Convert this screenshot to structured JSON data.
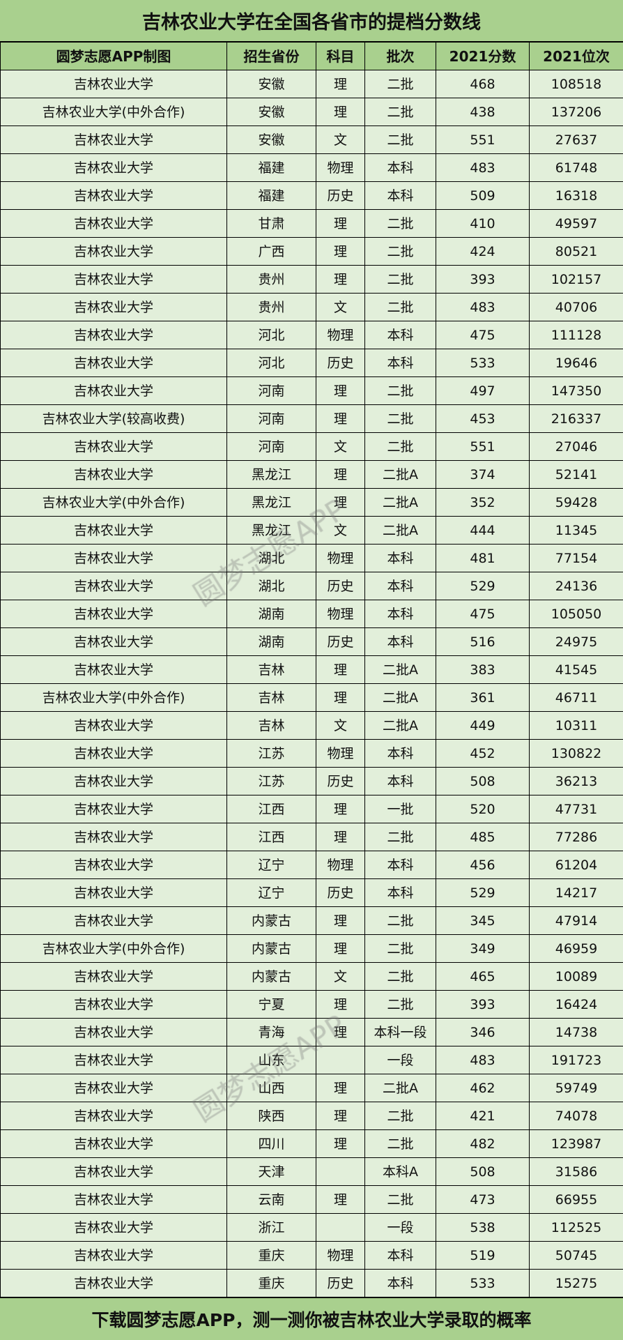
{
  "title": "吉林农业大学在全国各省市的提档分数线",
  "headers": [
    "圆梦志愿APP制图",
    "招生省份",
    "科目",
    "批次",
    "2021分数",
    "2021位次"
  ],
  "rows": [
    [
      "吉林农业大学",
      "安徽",
      "理",
      "二批",
      "468",
      "108518"
    ],
    [
      "吉林农业大学(中外合作)",
      "安徽",
      "理",
      "二批",
      "438",
      "137206"
    ],
    [
      "吉林农业大学",
      "安徽",
      "文",
      "二批",
      "551",
      "27637"
    ],
    [
      "吉林农业大学",
      "福建",
      "物理",
      "本科",
      "483",
      "61748"
    ],
    [
      "吉林农业大学",
      "福建",
      "历史",
      "本科",
      "509",
      "16318"
    ],
    [
      "吉林农业大学",
      "甘肃",
      "理",
      "二批",
      "410",
      "49597"
    ],
    [
      "吉林农业大学",
      "广西",
      "理",
      "二批",
      "424",
      "80521"
    ],
    [
      "吉林农业大学",
      "贵州",
      "理",
      "二批",
      "393",
      "102157"
    ],
    [
      "吉林农业大学",
      "贵州",
      "文",
      "二批",
      "483",
      "40706"
    ],
    [
      "吉林农业大学",
      "河北",
      "物理",
      "本科",
      "475",
      "111128"
    ],
    [
      "吉林农业大学",
      "河北",
      "历史",
      "本科",
      "533",
      "19646"
    ],
    [
      "吉林农业大学",
      "河南",
      "理",
      "二批",
      "497",
      "147350"
    ],
    [
      "吉林农业大学(较高收费)",
      "河南",
      "理",
      "二批",
      "453",
      "216337"
    ],
    [
      "吉林农业大学",
      "河南",
      "文",
      "二批",
      "551",
      "27046"
    ],
    [
      "吉林农业大学",
      "黑龙江",
      "理",
      "二批A",
      "374",
      "52141"
    ],
    [
      "吉林农业大学(中外合作)",
      "黑龙江",
      "理",
      "二批A",
      "352",
      "59428"
    ],
    [
      "吉林农业大学",
      "黑龙江",
      "文",
      "二批A",
      "444",
      "11345"
    ],
    [
      "吉林农业大学",
      "湖北",
      "物理",
      "本科",
      "481",
      "77154"
    ],
    [
      "吉林农业大学",
      "湖北",
      "历史",
      "本科",
      "529",
      "24136"
    ],
    [
      "吉林农业大学",
      "湖南",
      "物理",
      "本科",
      "475",
      "105050"
    ],
    [
      "吉林农业大学",
      "湖南",
      "历史",
      "本科",
      "516",
      "24975"
    ],
    [
      "吉林农业大学",
      "吉林",
      "理",
      "二批A",
      "383",
      "41545"
    ],
    [
      "吉林农业大学(中外合作)",
      "吉林",
      "理",
      "二批A",
      "361",
      "46711"
    ],
    [
      "吉林农业大学",
      "吉林",
      "文",
      "二批A",
      "449",
      "10311"
    ],
    [
      "吉林农业大学",
      "江苏",
      "物理",
      "本科",
      "452",
      "130822"
    ],
    [
      "吉林农业大学",
      "江苏",
      "历史",
      "本科",
      "508",
      "36213"
    ],
    [
      "吉林农业大学",
      "江西",
      "理",
      "一批",
      "520",
      "47731"
    ],
    [
      "吉林农业大学",
      "江西",
      "理",
      "二批",
      "485",
      "77286"
    ],
    [
      "吉林农业大学",
      "辽宁",
      "物理",
      "本科",
      "456",
      "61204"
    ],
    [
      "吉林农业大学",
      "辽宁",
      "历史",
      "本科",
      "529",
      "14217"
    ],
    [
      "吉林农业大学",
      "内蒙古",
      "理",
      "二批",
      "345",
      "47914"
    ],
    [
      "吉林农业大学(中外合作)",
      "内蒙古",
      "理",
      "二批",
      "349",
      "46959"
    ],
    [
      "吉林农业大学",
      "内蒙古",
      "文",
      "二批",
      "465",
      "10089"
    ],
    [
      "吉林农业大学",
      "宁夏",
      "理",
      "二批",
      "393",
      "16424"
    ],
    [
      "吉林农业大学",
      "青海",
      "理",
      "本科一段",
      "346",
      "14738"
    ],
    [
      "吉林农业大学",
      "山东",
      "",
      "一段",
      "483",
      "191723"
    ],
    [
      "吉林农业大学",
      "山西",
      "理",
      "二批A",
      "462",
      "59749"
    ],
    [
      "吉林农业大学",
      "陕西",
      "理",
      "二批",
      "421",
      "74078"
    ],
    [
      "吉林农业大学",
      "四川",
      "理",
      "二批",
      "482",
      "123987"
    ],
    [
      "吉林农业大学",
      "天津",
      "",
      "本科A",
      "508",
      "31586"
    ],
    [
      "吉林农业大学",
      "云南",
      "理",
      "二批",
      "473",
      "66955"
    ],
    [
      "吉林农业大学",
      "浙江",
      "",
      "一段",
      "538",
      "112525"
    ],
    [
      "吉林农业大学",
      "重庆",
      "物理",
      "本科",
      "519",
      "50745"
    ],
    [
      "吉林农业大学",
      "重庆",
      "历史",
      "本科",
      "533",
      "15275"
    ]
  ],
  "footer": "下载圆梦志愿APP，测一测你被吉林农业大学录取的概率",
  "watermark": "圆梦志愿APP",
  "colors": {
    "header_bg": "#a9d08e",
    "row_bg": "#e2efda"
  }
}
